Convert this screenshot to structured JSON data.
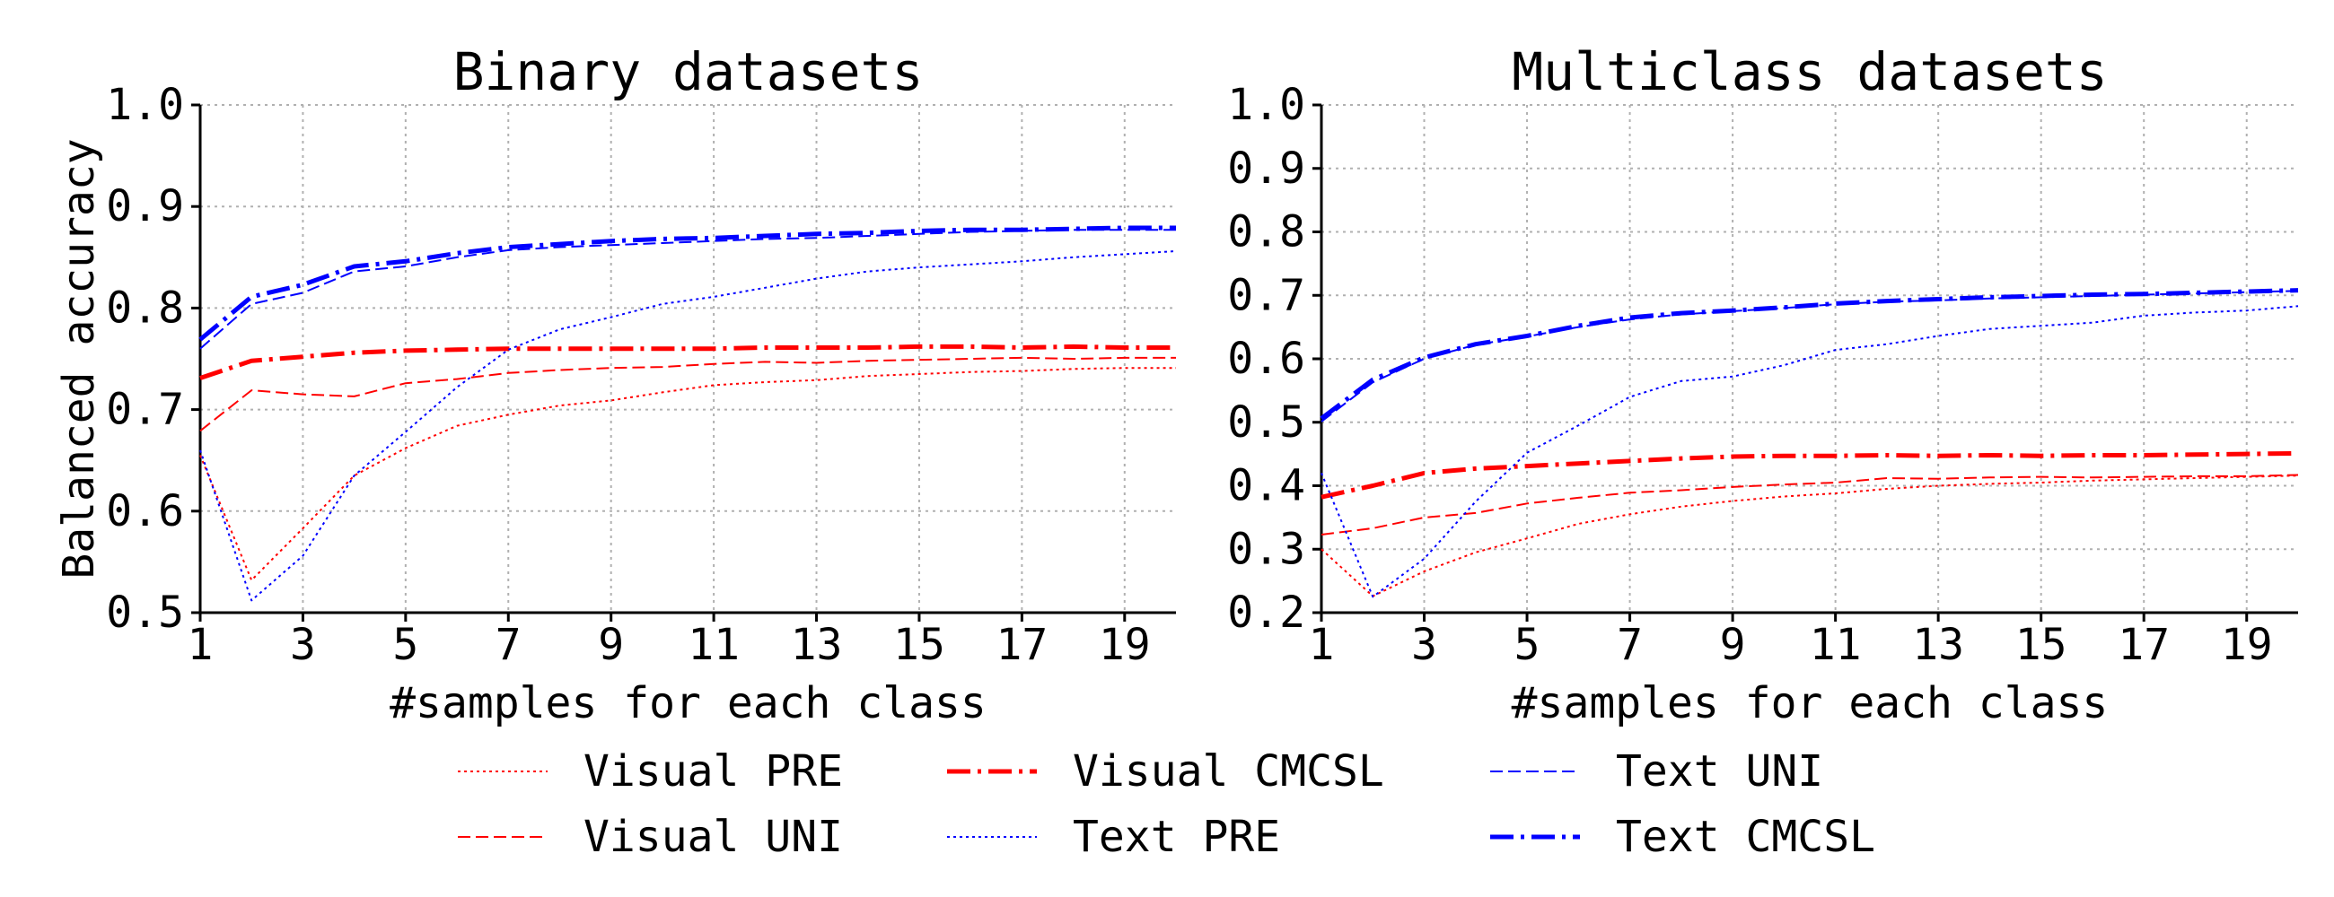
{
  "legend": {
    "position": "bottom-center",
    "ncol": 3
  },
  "chart_data": [
    {
      "type": "line",
      "title": "Binary datasets",
      "xlabel": "#samples for each class",
      "ylabel": "Balanced accuracy",
      "xlim": [
        1,
        20
      ],
      "ylim": [
        0.5,
        1.0
      ],
      "xticks": [
        1,
        3,
        5,
        7,
        9,
        11,
        13,
        15,
        17,
        19
      ],
      "yticks": [
        0.5,
        0.6,
        0.7,
        0.8,
        0.9,
        1.0
      ],
      "grid": true,
      "x": [
        1,
        2,
        3,
        4,
        5,
        6,
        7,
        8,
        9,
        10,
        11,
        12,
        13,
        14,
        15,
        16,
        17,
        18,
        19,
        20
      ],
      "series": [
        {
          "name": "Visual PRE",
          "color": "#ff0000",
          "style": "dotted",
          "width": 2,
          "values": [
            0.655,
            0.532,
            0.583,
            0.635,
            0.662,
            0.684,
            0.695,
            0.704,
            0.709,
            0.717,
            0.724,
            0.727,
            0.729,
            0.733,
            0.735,
            0.737,
            0.738,
            0.74,
            0.741,
            0.741
          ]
        },
        {
          "name": "Visual UNI",
          "color": "#ff0000",
          "style": "dashed",
          "width": 2,
          "values": [
            0.679,
            0.719,
            0.715,
            0.713,
            0.726,
            0.73,
            0.736,
            0.739,
            0.741,
            0.742,
            0.745,
            0.747,
            0.746,
            0.748,
            0.749,
            0.75,
            0.751,
            0.75,
            0.751,
            0.751
          ]
        },
        {
          "name": "Visual CMCSL",
          "color": "#ff0000",
          "style": "dashdot",
          "width": 5,
          "values": [
            0.731,
            0.748,
            0.752,
            0.756,
            0.758,
            0.759,
            0.76,
            0.76,
            0.76,
            0.76,
            0.76,
            0.761,
            0.761,
            0.761,
            0.762,
            0.762,
            0.761,
            0.762,
            0.761,
            0.761
          ]
        },
        {
          "name": "Text PRE",
          "color": "#0000ff",
          "style": "dotted",
          "width": 2,
          "values": [
            0.66,
            0.512,
            0.556,
            0.635,
            0.678,
            0.722,
            0.759,
            0.779,
            0.791,
            0.804,
            0.811,
            0.82,
            0.829,
            0.836,
            0.84,
            0.843,
            0.846,
            0.85,
            0.853,
            0.856
          ]
        },
        {
          "name": "Text UNI",
          "color": "#0000ff",
          "style": "dashed",
          "width": 2,
          "values": [
            0.76,
            0.804,
            0.815,
            0.836,
            0.841,
            0.85,
            0.857,
            0.86,
            0.862,
            0.864,
            0.866,
            0.868,
            0.869,
            0.871,
            0.873,
            0.875,
            0.876,
            0.877,
            0.877,
            0.877
          ]
        },
        {
          "name": "Text CMCSL",
          "color": "#0000ff",
          "style": "dashdot",
          "width": 5,
          "values": [
            0.769,
            0.811,
            0.823,
            0.841,
            0.846,
            0.854,
            0.86,
            0.863,
            0.866,
            0.868,
            0.869,
            0.871,
            0.873,
            0.874,
            0.876,
            0.877,
            0.877,
            0.878,
            0.879,
            0.879
          ]
        }
      ]
    },
    {
      "type": "line",
      "title": "Multiclass datasets",
      "xlabel": "#samples for each class",
      "ylabel": "",
      "xlim": [
        1,
        20
      ],
      "ylim": [
        0.2,
        1.0
      ],
      "xticks": [
        1,
        3,
        5,
        7,
        9,
        11,
        13,
        15,
        17,
        19
      ],
      "yticks": [
        0.2,
        0.3,
        0.4,
        0.5,
        0.6,
        0.7,
        0.8,
        0.9,
        1.0
      ],
      "grid": true,
      "x": [
        1,
        2,
        3,
        4,
        5,
        6,
        7,
        8,
        9,
        10,
        11,
        12,
        13,
        14,
        15,
        16,
        17,
        18,
        19,
        20
      ],
      "series": [
        {
          "name": "Visual PRE",
          "color": "#ff0000",
          "style": "dotted",
          "width": 2,
          "values": [
            0.3,
            0.226,
            0.265,
            0.295,
            0.317,
            0.34,
            0.355,
            0.367,
            0.376,
            0.383,
            0.388,
            0.395,
            0.4,
            0.403,
            0.405,
            0.408,
            0.41,
            0.412,
            0.414,
            0.416
          ]
        },
        {
          "name": "Visual UNI",
          "color": "#ff0000",
          "style": "dashed",
          "width": 2,
          "values": [
            0.323,
            0.333,
            0.35,
            0.357,
            0.372,
            0.381,
            0.389,
            0.393,
            0.398,
            0.402,
            0.405,
            0.412,
            0.411,
            0.413,
            0.414,
            0.413,
            0.414,
            0.415,
            0.415,
            0.417
          ]
        },
        {
          "name": "Visual CMCSL",
          "color": "#ff0000",
          "style": "dashdot",
          "width": 5,
          "values": [
            0.382,
            0.4,
            0.42,
            0.427,
            0.431,
            0.435,
            0.439,
            0.443,
            0.446,
            0.447,
            0.447,
            0.448,
            0.447,
            0.448,
            0.447,
            0.448,
            0.448,
            0.449,
            0.45,
            0.451
          ]
        },
        {
          "name": "Text PRE",
          "color": "#0000ff",
          "style": "dotted",
          "width": 2,
          "values": [
            0.42,
            0.225,
            0.285,
            0.375,
            0.452,
            0.495,
            0.54,
            0.565,
            0.572,
            0.59,
            0.614,
            0.623,
            0.636,
            0.647,
            0.652,
            0.657,
            0.668,
            0.673,
            0.676,
            0.683
          ]
        },
        {
          "name": "Text UNI",
          "color": "#0000ff",
          "style": "dashed",
          "width": 2,
          "values": [
            0.501,
            0.563,
            0.6,
            0.622,
            0.635,
            0.65,
            0.662,
            0.67,
            0.675,
            0.68,
            0.686,
            0.69,
            0.692,
            0.695,
            0.697,
            0.699,
            0.701,
            0.703,
            0.705,
            0.707
          ]
        },
        {
          "name": "Text CMCSL",
          "color": "#0000ff",
          "style": "dashdot",
          "width": 5,
          "values": [
            0.506,
            0.567,
            0.602,
            0.623,
            0.636,
            0.652,
            0.665,
            0.672,
            0.676,
            0.681,
            0.687,
            0.691,
            0.694,
            0.697,
            0.699,
            0.701,
            0.702,
            0.704,
            0.706,
            0.708
          ]
        }
      ]
    }
  ]
}
